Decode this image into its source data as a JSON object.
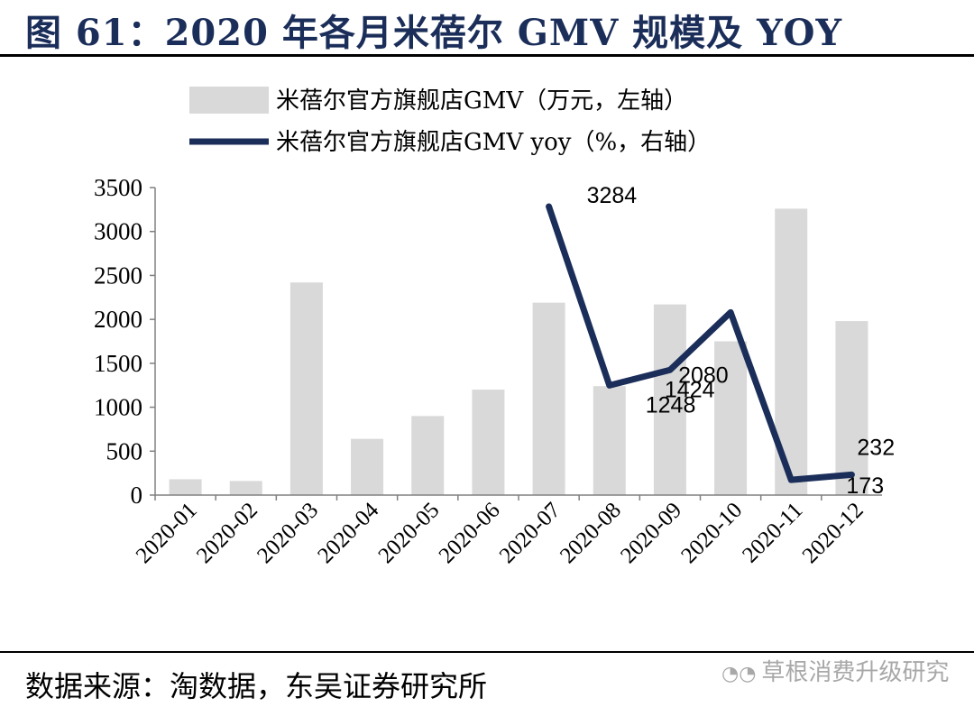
{
  "header": {
    "title": "图 61：2020 年各月米蓓尔 GMV 规模及 YOY"
  },
  "footer": {
    "source": "数据来源：淘数据，东吴证券研究所",
    "watermark": "草根消费升级研究"
  },
  "colors": {
    "bar": "#d9d9d9",
    "line": "#1b2e5a",
    "title": "#1b2e5a"
  },
  "chart_data": {
    "type": "bar",
    "title": "",
    "categories": [
      "2020-01",
      "2020-02",
      "2020-03",
      "2020-04",
      "2020-05",
      "2020-06",
      "2020-07",
      "2020-08",
      "2020-09",
      "2020-10",
      "2020-11",
      "2020-12"
    ],
    "series": [
      {
        "name": "米蓓尔官方旗舰店GMV（万元，左轴）",
        "type": "bar",
        "axis": "left",
        "values": [
          180,
          160,
          2420,
          640,
          900,
          1200,
          2190,
          1240,
          2170,
          1750,
          3260,
          1980
        ]
      },
      {
        "name": "米蓓尔官方旗舰店GMV yoy（%，右轴）",
        "type": "line",
        "axis": "right",
        "values": [
          null,
          null,
          null,
          null,
          null,
          null,
          3284,
          1248,
          1424,
          2080,
          173,
          232
        ],
        "labels": [
          "",
          "",
          "",
          "",
          "",
          "",
          "3284",
          "1248",
          "1424",
          "2080",
          "173",
          "232"
        ]
      }
    ],
    "ylim": [
      0,
      3500
    ],
    "yticks": [
      "0",
      "500",
      "1000",
      "1500",
      "2000",
      "2500",
      "3000",
      "3500"
    ],
    "xlabel": "",
    "ylabel": ""
  }
}
